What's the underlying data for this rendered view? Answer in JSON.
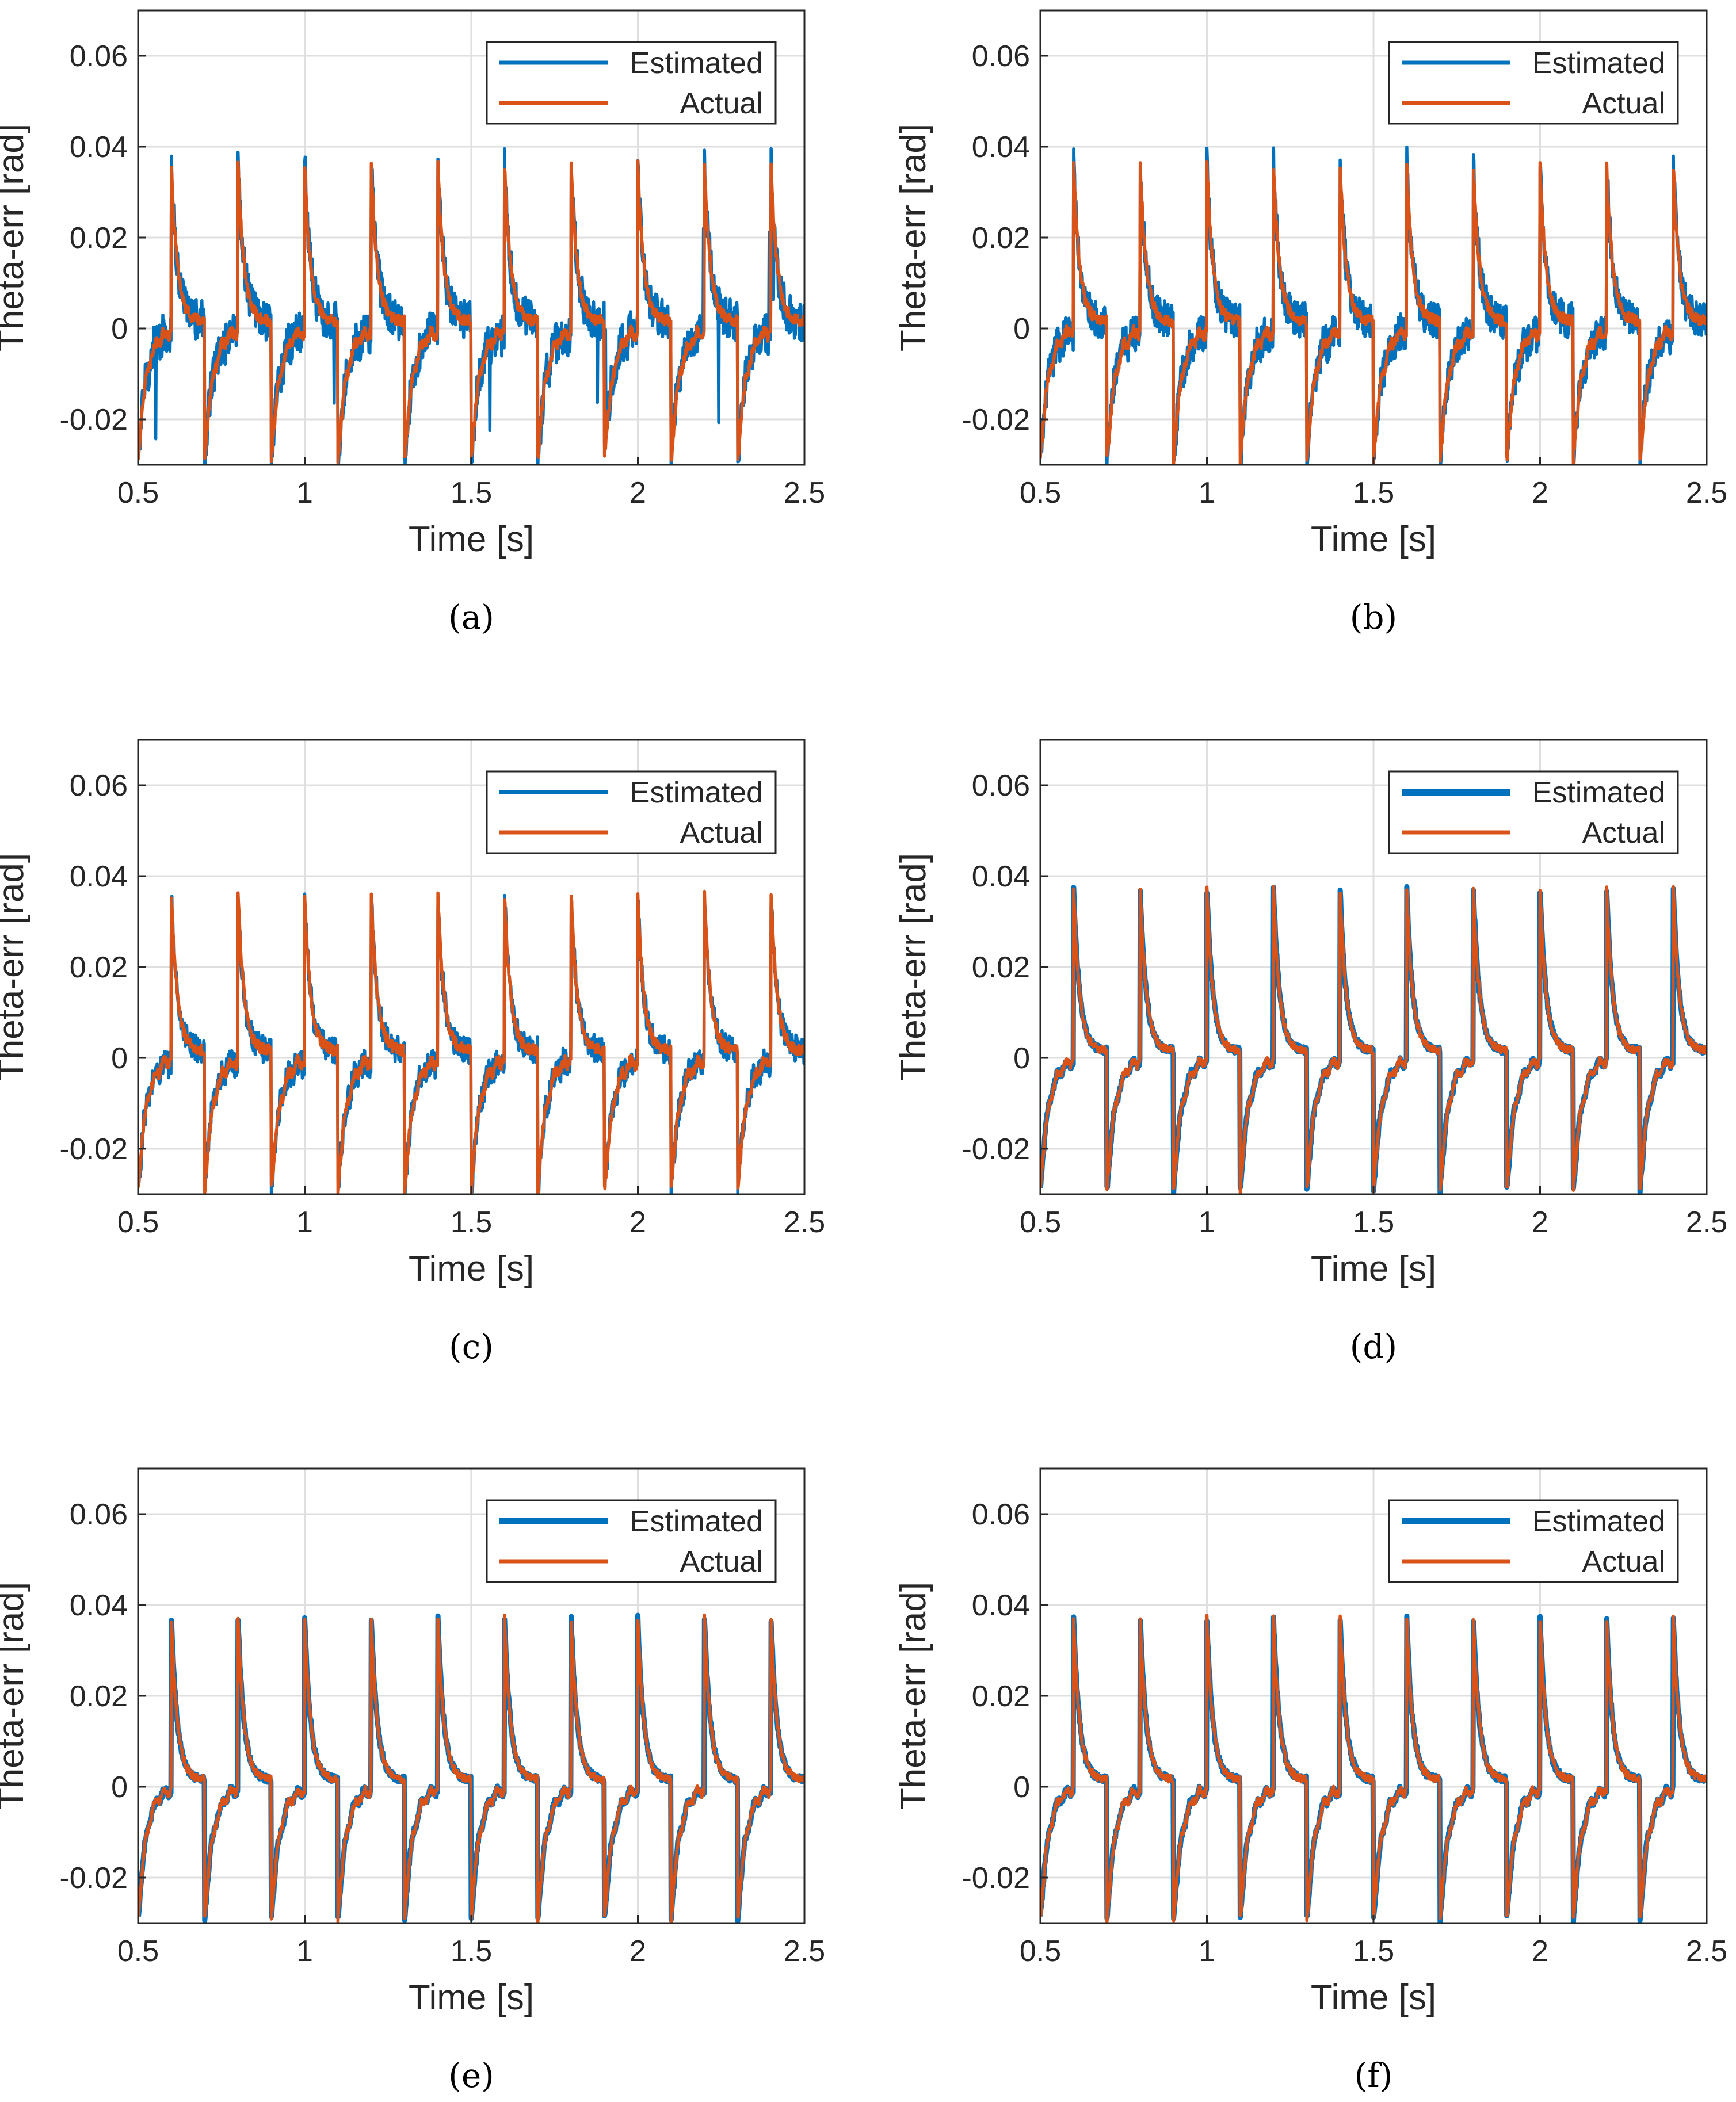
{
  "figure": {
    "colors": {
      "estimated": "#0072BD",
      "actual": "#D95319",
      "axis": "#262626",
      "grid": "#dfdfdf"
    }
  },
  "chart_data": [
    {
      "panel": "a",
      "caption": "(a)",
      "type": "line",
      "xlabel": "Time [s]",
      "ylabel": "Theta-err [rad]",
      "xlim": [
        0.5,
        2.5
      ],
      "ylim": [
        -0.03,
        0.07
      ],
      "xticks": [
        0.5,
        1,
        1.5,
        2,
        2.5
      ],
      "xtick_labels": [
        "0.5",
        "1",
        "1.5",
        "2",
        "2.5"
      ],
      "yticks": [
        -0.02,
        0,
        0.02,
        0.04,
        0.06
      ],
      "ytick_labels": [
        "-0.02",
        "0",
        "0.02",
        "0.04",
        "0.06"
      ],
      "grid": true,
      "legend_location": "top-right",
      "pulse_period_s": 0.2,
      "positive_spike_times": [
        0.6,
        0.8,
        1.0,
        1.2,
        1.4,
        1.6,
        1.8,
        2.0,
        2.2,
        2.4
      ],
      "negative_spike_times": [
        0.5,
        0.7,
        0.9,
        1.1,
        1.3,
        1.5,
        1.7,
        1.9,
        2.1,
        2.3
      ],
      "peak_value": 0.036,
      "trough_value": -0.029,
      "series": [
        {
          "name": "Estimated",
          "color": "#0072BD",
          "weight": "thin",
          "noise_rad": 0.0045,
          "outlier_spikes": true
        },
        {
          "name": "Actual",
          "color": "#D95319",
          "weight": "thin",
          "noise_rad": 0.0012
        }
      ]
    },
    {
      "panel": "b",
      "caption": "(b)",
      "type": "line",
      "xlabel": "Time [s]",
      "ylabel": "Theta-err [rad]",
      "xlim": [
        0.5,
        2.5
      ],
      "ylim": [
        -0.03,
        0.07
      ],
      "xticks": [
        0.5,
        1,
        1.5,
        2,
        2.5
      ],
      "xtick_labels": [
        "0.5",
        "1",
        "1.5",
        "2",
        "2.5"
      ],
      "yticks": [
        -0.02,
        0,
        0.02,
        0.04,
        0.06
      ],
      "ytick_labels": [
        "-0.02",
        "0",
        "0.02",
        "0.04",
        "0.06"
      ],
      "grid": true,
      "legend_location": "top-right",
      "pulse_period_s": 0.2,
      "positive_spike_times": [
        0.6,
        0.8,
        1.0,
        1.2,
        1.4,
        1.6,
        1.8,
        2.0,
        2.2,
        2.4
      ],
      "negative_spike_times": [
        0.5,
        0.7,
        0.9,
        1.1,
        1.3,
        1.5,
        1.7,
        1.9,
        2.1,
        2.3
      ],
      "peak_value": 0.036,
      "trough_value": -0.029,
      "series": [
        {
          "name": "Estimated",
          "color": "#0072BD",
          "weight": "thin",
          "noise_rad": 0.004,
          "outlier_spikes": false
        },
        {
          "name": "Actual",
          "color": "#D95319",
          "weight": "thin",
          "noise_rad": 0.0012
        }
      ]
    },
    {
      "panel": "c",
      "caption": "(c)",
      "type": "line",
      "xlabel": "Time [s]",
      "ylabel": "Theta-err [rad]",
      "xlim": [
        0.5,
        2.5
      ],
      "ylim": [
        -0.03,
        0.07
      ],
      "xticks": [
        0.5,
        1,
        1.5,
        2,
        2.5
      ],
      "xtick_labels": [
        "0.5",
        "1",
        "1.5",
        "2",
        "2.5"
      ],
      "yticks": [
        -0.02,
        0,
        0.02,
        0.04,
        0.06
      ],
      "ytick_labels": [
        "-0.02",
        "0",
        "0.02",
        "0.04",
        "0.06"
      ],
      "grid": true,
      "legend_location": "top-right",
      "pulse_period_s": 0.2,
      "positive_spike_times": [
        0.6,
        0.8,
        1.0,
        1.2,
        1.4,
        1.6,
        1.8,
        2.0,
        2.2,
        2.4
      ],
      "negative_spike_times": [
        0.5,
        0.7,
        0.9,
        1.1,
        1.3,
        1.5,
        1.7,
        1.9,
        2.1,
        2.3
      ],
      "peak_value": 0.036,
      "trough_value": -0.029,
      "series": [
        {
          "name": "Estimated",
          "color": "#0072BD",
          "weight": "thin",
          "noise_rad": 0.003,
          "outlier_spikes": false
        },
        {
          "name": "Actual",
          "color": "#D95319",
          "weight": "thin",
          "noise_rad": 0.0012
        }
      ]
    },
    {
      "panel": "d",
      "caption": "(d)",
      "type": "line",
      "xlabel": "Time [s]",
      "ylabel": "Theta-err [rad]",
      "xlim": [
        0.5,
        2.5
      ],
      "ylim": [
        -0.03,
        0.07
      ],
      "xticks": [
        0.5,
        1,
        1.5,
        2,
        2.5
      ],
      "xtick_labels": [
        "0.5",
        "1",
        "1.5",
        "2",
        "2.5"
      ],
      "yticks": [
        -0.02,
        0,
        0.02,
        0.04,
        0.06
      ],
      "ytick_labels": [
        "-0.02",
        "0",
        "0.02",
        "0.04",
        "0.06"
      ],
      "grid": true,
      "legend_location": "top-right",
      "pulse_period_s": 0.2,
      "positive_spike_times": [
        0.6,
        0.8,
        1.0,
        1.2,
        1.4,
        1.6,
        1.8,
        2.0,
        2.2,
        2.4
      ],
      "negative_spike_times": [
        0.5,
        0.7,
        0.9,
        1.1,
        1.3,
        1.5,
        1.7,
        1.9,
        2.1,
        2.3
      ],
      "peak_value": 0.037,
      "trough_value": -0.029,
      "series": [
        {
          "name": "Estimated",
          "color": "#0072BD",
          "weight": "thick",
          "noise_rad": 0.0008,
          "outlier_spikes": false
        },
        {
          "name": "Actual",
          "color": "#D95319",
          "weight": "thin",
          "noise_rad": 0.0008
        }
      ]
    },
    {
      "panel": "e",
      "caption": "(e)",
      "type": "line",
      "xlabel": "Time [s]",
      "ylabel": "Theta-err [rad]",
      "xlim": [
        0.5,
        2.5
      ],
      "ylim": [
        -0.03,
        0.07
      ],
      "xticks": [
        0.5,
        1,
        1.5,
        2,
        2.5
      ],
      "xtick_labels": [
        "0.5",
        "1",
        "1.5",
        "2",
        "2.5"
      ],
      "yticks": [
        -0.02,
        0,
        0.02,
        0.04,
        0.06
      ],
      "ytick_labels": [
        "-0.02",
        "0",
        "0.02",
        "0.04",
        "0.06"
      ],
      "grid": true,
      "legend_location": "top-right",
      "pulse_period_s": 0.2,
      "positive_spike_times": [
        0.6,
        0.8,
        1.0,
        1.2,
        1.4,
        1.6,
        1.8,
        2.0,
        2.2,
        2.4
      ],
      "negative_spike_times": [
        0.5,
        0.7,
        0.9,
        1.1,
        1.3,
        1.5,
        1.7,
        1.9,
        2.1,
        2.3
      ],
      "peak_value": 0.037,
      "trough_value": -0.029,
      "series": [
        {
          "name": "Estimated",
          "color": "#0072BD",
          "weight": "thick",
          "noise_rad": 0.0008,
          "outlier_spikes": false
        },
        {
          "name": "Actual",
          "color": "#D95319",
          "weight": "thin",
          "noise_rad": 0.0008
        }
      ]
    },
    {
      "panel": "f",
      "caption": "(f)",
      "type": "line",
      "xlabel": "Time [s]",
      "ylabel": "Theta-err [rad]",
      "xlim": [
        0.5,
        2.5
      ],
      "ylim": [
        -0.03,
        0.07
      ],
      "xticks": [
        0.5,
        1,
        1.5,
        2,
        2.5
      ],
      "xtick_labels": [
        "0.5",
        "1",
        "1.5",
        "2",
        "2.5"
      ],
      "yticks": [
        -0.02,
        0,
        0.02,
        0.04,
        0.06
      ],
      "ytick_labels": [
        "-0.02",
        "0",
        "0.02",
        "0.04",
        "0.06"
      ],
      "grid": true,
      "legend_location": "top-right",
      "pulse_period_s": 0.2,
      "positive_spike_times": [
        0.6,
        0.8,
        1.0,
        1.2,
        1.4,
        1.6,
        1.8,
        2.0,
        2.2,
        2.4
      ],
      "negative_spike_times": [
        0.5,
        0.7,
        0.9,
        1.1,
        1.3,
        1.5,
        1.7,
        1.9,
        2.1,
        2.3
      ],
      "peak_value": 0.037,
      "trough_value": -0.029,
      "series": [
        {
          "name": "Estimated",
          "color": "#0072BD",
          "weight": "thick",
          "noise_rad": 0.0008,
          "outlier_spikes": false
        },
        {
          "name": "Actual",
          "color": "#D95319",
          "weight": "thin",
          "noise_rad": 0.0008
        }
      ]
    }
  ]
}
